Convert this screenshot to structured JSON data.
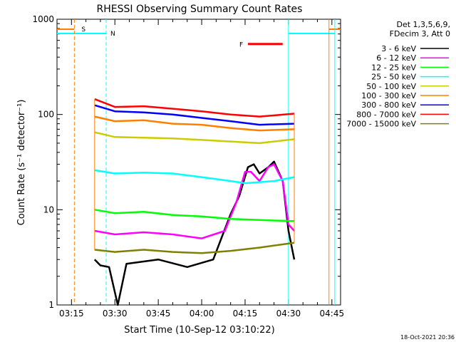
{
  "chart_data": {
    "type": "line",
    "title": "RHESSI Observing Summary Count Rates",
    "xlabel": "Start Time (10-Sep-12 03:10:22)",
    "ylabel": "Count Rate (s⁻¹ detector⁻¹)",
    "yscale": "log",
    "ylim": [
      1,
      1000
    ],
    "xlim": [
      "03:10",
      "04:48"
    ],
    "xticks": [
      "03:15",
      "03:30",
      "03:45",
      "04:00",
      "04:15",
      "04:30",
      "04:45"
    ],
    "yticks": [
      "1",
      "10",
      "100",
      "1000"
    ],
    "legend_header": [
      "Det 1,3,5,6,9,",
      "FDecim 3, Att 0"
    ],
    "legend_position": "right-outside",
    "footer_stamp": "18-Oct-2021 20:36",
    "series": [
      {
        "name": "3 - 6 keV",
        "color": "#000000",
        "points": [
          [
            "03:23",
            3
          ],
          [
            "03:25",
            2.6
          ],
          [
            "03:28",
            2.5
          ],
          [
            "03:31",
            1
          ],
          [
            "03:34",
            2.7
          ],
          [
            "03:45",
            3
          ],
          [
            "03:55",
            2.5
          ],
          [
            "04:04",
            3
          ],
          [
            "04:10",
            9
          ],
          [
            "04:13",
            14
          ],
          [
            "04:16",
            28
          ],
          [
            "04:18",
            30
          ],
          [
            "04:20",
            24
          ],
          [
            "04:23",
            28
          ],
          [
            "04:25",
            32
          ],
          [
            "04:28",
            20
          ],
          [
            "04:30",
            6
          ],
          [
            "04:32",
            3
          ]
        ]
      },
      {
        "name": "6 - 12 keV",
        "color": "#ff00ff",
        "points": [
          [
            "03:23",
            6
          ],
          [
            "03:30",
            5.5
          ],
          [
            "03:40",
            5.8
          ],
          [
            "03:50",
            5.5
          ],
          [
            "04:00",
            5
          ],
          [
            "04:08",
            6
          ],
          [
            "04:12",
            12
          ],
          [
            "04:15",
            25
          ],
          [
            "04:17",
            25
          ],
          [
            "04:20",
            20
          ],
          [
            "04:23",
            28
          ],
          [
            "04:25",
            30
          ],
          [
            "04:28",
            20
          ],
          [
            "04:30",
            7
          ],
          [
            "04:32",
            6
          ]
        ]
      },
      {
        "name": "12 - 25 keV",
        "color": "#00ff00",
        "points": [
          [
            "03:23",
            10
          ],
          [
            "03:30",
            9.2
          ],
          [
            "03:40",
            9.5
          ],
          [
            "03:50",
            8.8
          ],
          [
            "04:00",
            8.5
          ],
          [
            "04:10",
            8
          ],
          [
            "04:20",
            7.8
          ],
          [
            "04:32",
            7.6
          ]
        ]
      },
      {
        "name": "25 - 50 keV",
        "color": "#00ffff",
        "points": [
          [
            "03:23",
            26
          ],
          [
            "03:30",
            24
          ],
          [
            "03:40",
            24.5
          ],
          [
            "03:50",
            24
          ],
          [
            "04:00",
            22
          ],
          [
            "04:10",
            20
          ],
          [
            "04:15",
            19
          ],
          [
            "04:20",
            19.5
          ],
          [
            "04:25",
            20
          ],
          [
            "04:32",
            22
          ]
        ]
      },
      {
        "name": "50 - 100 keV",
        "color": "#cccc00",
        "points": [
          [
            "03:23",
            65
          ],
          [
            "03:30",
            58
          ],
          [
            "03:40",
            57
          ],
          [
            "03:50",
            56
          ],
          [
            "04:00",
            54
          ],
          [
            "04:10",
            52
          ],
          [
            "04:20",
            50
          ],
          [
            "04:32",
            55
          ]
        ]
      },
      {
        "name": "100 - 300 keV",
        "color": "#ff8000",
        "points": [
          [
            "03:23",
            95
          ],
          [
            "03:30",
            85
          ],
          [
            "03:40",
            87
          ],
          [
            "03:50",
            80
          ],
          [
            "04:00",
            78
          ],
          [
            "04:10",
            72
          ],
          [
            "04:20",
            68
          ],
          [
            "04:32",
            70
          ]
        ]
      },
      {
        "name": "300 - 800 keV",
        "color": "#0000ff",
        "points": [
          [
            "03:23",
            125
          ],
          [
            "03:30",
            108
          ],
          [
            "03:40",
            105
          ],
          [
            "03:50",
            100
          ],
          [
            "04:00",
            92
          ],
          [
            "04:10",
            85
          ],
          [
            "04:20",
            78
          ],
          [
            "04:32",
            80
          ]
        ]
      },
      {
        "name": "800 - 7000 keV",
        "color": "#ff0000",
        "points": [
          [
            "03:23",
            145
          ],
          [
            "03:30",
            120
          ],
          [
            "03:40",
            122
          ],
          [
            "03:50",
            115
          ],
          [
            "04:00",
            108
          ],
          [
            "04:10",
            100
          ],
          [
            "04:20",
            95
          ],
          [
            "04:32",
            102
          ]
        ]
      },
      {
        "name": "7000 - 15000 keV",
        "color": "#808000",
        "points": [
          [
            "03:23",
            3.8
          ],
          [
            "03:30",
            3.6
          ],
          [
            "03:40",
            3.8
          ],
          [
            "03:50",
            3.6
          ],
          [
            "04:00",
            3.5
          ],
          [
            "04:10",
            3.7
          ],
          [
            "04:20",
            4
          ],
          [
            "04:32",
            4.5
          ]
        ]
      }
    ],
    "annotations": {
      "saa_label": "S",
      "saa_color": "#ff8000",
      "saa_intervals": [
        [
          "03:10",
          "03:16"
        ],
        [
          "04:44",
          "04:48"
        ]
      ],
      "saa_lines": [
        "03:16",
        "04:44"
      ],
      "night_label": "N",
      "night_color": "#00ffff",
      "night_intervals": [
        [
          "03:10",
          "03:27"
        ],
        [
          "04:30",
          "04:46"
        ]
      ],
      "night_lines": [
        "03:27",
        "04:30",
        "04:46"
      ],
      "flare_label": "F",
      "flare_color": "#ff0000",
      "flare_interval": [
        "04:16",
        "04:28"
      ],
      "flare_level": 550
    }
  }
}
